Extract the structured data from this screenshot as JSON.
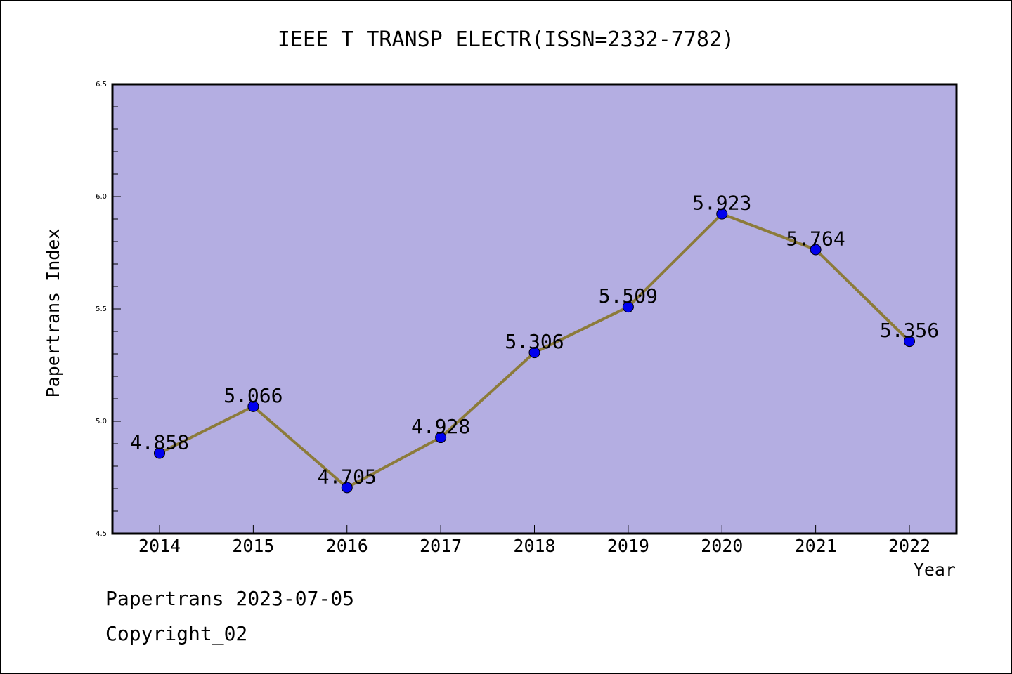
{
  "chart_data": {
    "type": "line",
    "title": "IEEE T TRANSP ELECTR(ISSN=2332-7782)",
    "xlabel": "Year",
    "ylabel": "Papertrans Index",
    "categories": [
      "2014",
      "2015",
      "2016",
      "2017",
      "2018",
      "2019",
      "2020",
      "2021",
      "2022"
    ],
    "series": [
      {
        "values": [
          4.858,
          5.066,
          4.705,
          4.928,
          5.306,
          5.509,
          5.923,
          5.764,
          5.356
        ],
        "labels": [
          "4.858",
          "5.066",
          "4.705",
          "4.928",
          "5.306",
          "5.509",
          "5.923",
          "5.764",
          "5.356"
        ]
      }
    ],
    "ylim": [
      4.5,
      6.5
    ],
    "yticks": [
      "4.5",
      "5.0",
      "5.5",
      "6.0",
      "6.5"
    ],
    "grid": false,
    "colors": {
      "plot_background": "#b4aee2",
      "line": "#8c7b3a",
      "marker": "#0000ee"
    }
  },
  "footer": {
    "source": "Papertrans 2023-07-05",
    "copyright": "Copyright_02"
  }
}
